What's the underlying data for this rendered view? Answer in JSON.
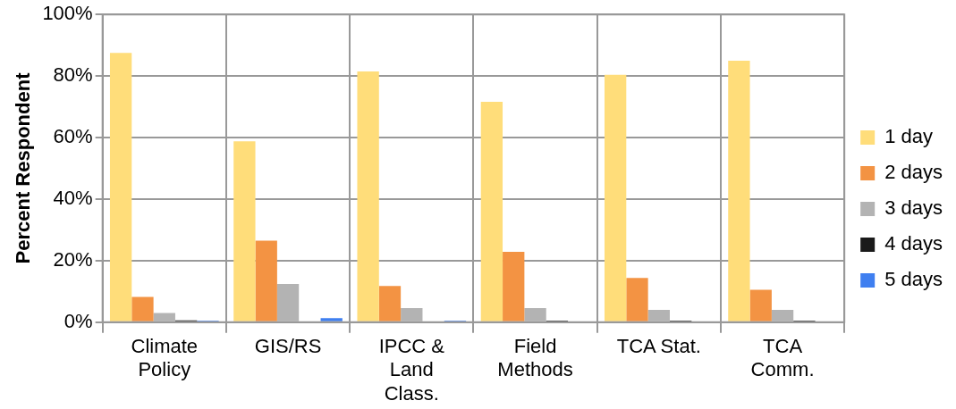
{
  "chart_data": {
    "type": "bar",
    "ylabel": "Percent Respondent",
    "categories": [
      "Climate Policy",
      "GIS/RS",
      "IPCC & Land Class.",
      "Field Methods",
      "TCA Stat.",
      "TCA Comm."
    ],
    "series": [
      {
        "name": "1 day",
        "color": "#ffdd7a",
        "values": [
          87.5,
          58.8,
          81.5,
          71.6,
          80.4,
          85
        ]
      },
      {
        "name": "2 days",
        "color": "#f39343",
        "values": [
          8.2,
          26.5,
          11.8,
          22.9,
          14.4,
          10.5
        ]
      },
      {
        "name": "3 days",
        "color": "#b3b3b3",
        "values": [
          3,
          12.4,
          4.6,
          4.6,
          4,
          4
        ]
      },
      {
        "name": "4 days",
        "color": "#1a1a1a",
        "values": [
          0.6,
          0,
          0,
          0.5,
          0.5,
          0.5
        ]
      },
      {
        "name": "5 days",
        "color": "#3f7ff0",
        "values": [
          0.5,
          1.3,
          0.5,
          0,
          0,
          0
        ]
      }
    ],
    "ylim": [
      0,
      100
    ],
    "yticks": [
      {
        "value": 0,
        "label": "0%"
      },
      {
        "value": 20,
        "label": "20%"
      },
      {
        "value": 40,
        "label": "40%"
      },
      {
        "value": 60,
        "label": "60%"
      },
      {
        "value": 80,
        "label": "80%"
      },
      {
        "value": 100,
        "label": "100%"
      }
    ],
    "grid": true,
    "legend": "right"
  }
}
